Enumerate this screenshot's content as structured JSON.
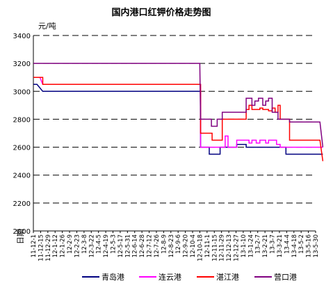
{
  "chart_data": {
    "type": "line",
    "title": "国内港口红钾价格走势图",
    "ylabel": "元/吨",
    "xlabel": "日期",
    "ylim": [
      2000,
      3400
    ],
    "yticks": [
      2000,
      2200,
      2400,
      2600,
      2800,
      3000,
      3200,
      3400
    ],
    "grid": "horizontal dashed",
    "legend_position": "bottom",
    "x_labels": [
      "11-12-1",
      "11-12-15",
      "11-12-29",
      "12-1-12",
      "12-1-26",
      "12-2-9",
      "12-2-23",
      "12-3-8",
      "12-3-22",
      "12-4-5",
      "12-4-19",
      "12-5-3",
      "12-5-17",
      "12-5-31",
      "12-6-14",
      "12-6-28",
      "12-7-12",
      "12-7-26",
      "12-8-9",
      "12-8-23",
      "12-9-6",
      "12-9-20",
      "12-10-4",
      "12-10-18",
      "12-11-1",
      "12-11-15",
      "12-11-29",
      "12-12-13",
      "12-12-27",
      "13-1-10",
      "13-1-24",
      "13-2-7",
      "13-2-21",
      "13-3-7",
      "13-3-21",
      "13-4-4",
      "13-4-18",
      "13-5-2",
      "13-5-16",
      "13-5-30"
    ],
    "series": [
      {
        "name": "青岛港",
        "color": "#000080",
        "points": [
          [
            0,
            3050
          ],
          [
            0.5,
            3050
          ],
          [
            1.3,
            3000
          ],
          [
            23.1,
            3000
          ],
          [
            23.1,
            2600
          ],
          [
            24.3,
            2600
          ],
          [
            24.3,
            2550
          ],
          [
            25.8,
            2550
          ],
          [
            25.8,
            2600
          ],
          [
            28.1,
            2600
          ],
          [
            28.1,
            2620
          ],
          [
            29.4,
            2620
          ],
          [
            29.4,
            2600
          ],
          [
            34.9,
            2600
          ],
          [
            34.9,
            2550
          ],
          [
            40,
            2550
          ]
        ]
      },
      {
        "name": "连云港",
        "color": "#ff00ff",
        "points": [
          [
            0,
            3100
          ],
          [
            0.9,
            3100
          ],
          [
            1.3,
            3050
          ],
          [
            23.1,
            3050
          ],
          [
            23.1,
            2600
          ],
          [
            26.5,
            2600
          ],
          [
            26.5,
            2680
          ],
          [
            26.9,
            2680
          ],
          [
            26.9,
            2600
          ],
          [
            28.1,
            2600
          ],
          [
            28.1,
            2650
          ],
          [
            29.8,
            2650
          ],
          [
            29.8,
            2630
          ],
          [
            30.2,
            2630
          ],
          [
            30.2,
            2650
          ],
          [
            30.8,
            2650
          ],
          [
            30.8,
            2630
          ],
          [
            31.3,
            2630
          ],
          [
            31.3,
            2650
          ],
          [
            32.1,
            2650
          ],
          [
            32.1,
            2630
          ],
          [
            32.5,
            2630
          ],
          [
            32.5,
            2650
          ],
          [
            33.6,
            2650
          ],
          [
            33.6,
            2620
          ],
          [
            34.1,
            2620
          ],
          [
            34.1,
            2600
          ],
          [
            40,
            2600
          ]
        ]
      },
      {
        "name": "湛江港",
        "color": "#ff0000",
        "points": [
          [
            0,
            3100
          ],
          [
            1.3,
            3100
          ],
          [
            1.3,
            3050
          ],
          [
            23.1,
            3050
          ],
          [
            23.1,
            2700
          ],
          [
            24.7,
            2700
          ],
          [
            24.7,
            2650
          ],
          [
            26.1,
            2650
          ],
          [
            26.1,
            2800
          ],
          [
            29.4,
            2800
          ],
          [
            29.4,
            2870
          ],
          [
            29.8,
            2870
          ],
          [
            29.8,
            2900
          ],
          [
            30.2,
            2900
          ],
          [
            30.2,
            2870
          ],
          [
            31.3,
            2870
          ],
          [
            31.3,
            2880
          ],
          [
            31.7,
            2880
          ],
          [
            31.7,
            2870
          ],
          [
            32.5,
            2870
          ],
          [
            32.5,
            2860
          ],
          [
            33.0,
            2860
          ],
          [
            33.0,
            2880
          ],
          [
            33.4,
            2880
          ],
          [
            33.4,
            2850
          ],
          [
            33.8,
            2850
          ],
          [
            33.8,
            2900
          ],
          [
            34.1,
            2900
          ],
          [
            34.1,
            2800
          ],
          [
            35.4,
            2800
          ],
          [
            35.4,
            2650
          ],
          [
            39.6,
            2650
          ],
          [
            40,
            2500
          ]
        ]
      },
      {
        "name": "营口港",
        "color": "#800080",
        "points": [
          [
            0,
            3200
          ],
          [
            23.0,
            3200
          ],
          [
            23.1,
            2800
          ],
          [
            24.6,
            2800
          ],
          [
            24.6,
            2750
          ],
          [
            25.4,
            2750
          ],
          [
            25.4,
            2800
          ],
          [
            26.1,
            2800
          ],
          [
            26.1,
            2850
          ],
          [
            29.4,
            2850
          ],
          [
            29.4,
            2950
          ],
          [
            30.2,
            2950
          ],
          [
            30.2,
            2900
          ],
          [
            30.6,
            2900
          ],
          [
            30.6,
            2930
          ],
          [
            31.1,
            2930
          ],
          [
            31.1,
            2950
          ],
          [
            31.7,
            2950
          ],
          [
            31.7,
            2900
          ],
          [
            32.1,
            2900
          ],
          [
            32.1,
            2930
          ],
          [
            32.5,
            2930
          ],
          [
            32.5,
            2950
          ],
          [
            33.0,
            2950
          ],
          [
            33.0,
            2850
          ],
          [
            33.8,
            2850
          ],
          [
            33.8,
            2800
          ],
          [
            35.4,
            2800
          ],
          [
            35.4,
            2780
          ],
          [
            39.6,
            2780
          ],
          [
            40,
            2600
          ]
        ]
      }
    ]
  }
}
